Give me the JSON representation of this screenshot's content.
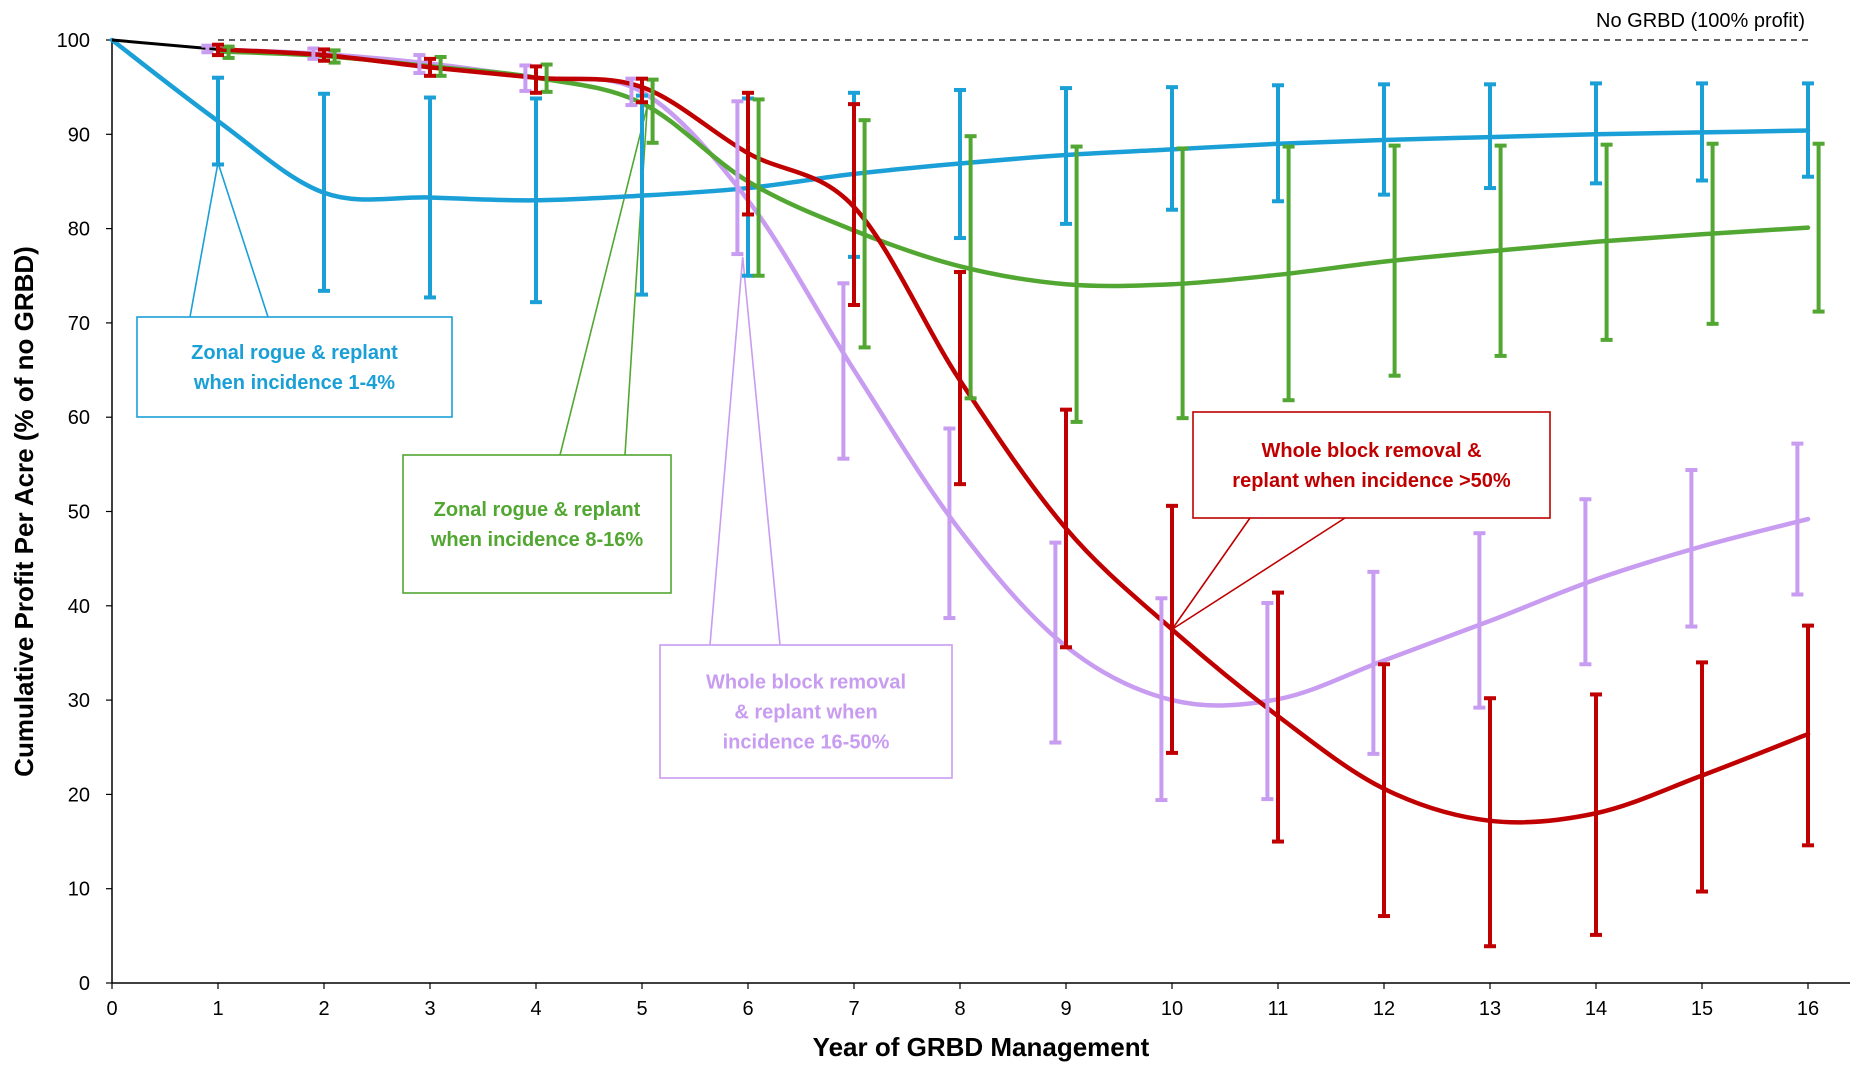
{
  "chart_data": {
    "type": "line",
    "title": "",
    "xlabel": "Year of GRBD Management",
    "ylabel": "Cumulative Profit Per Acre (% of no GRBD)",
    "xlim": [
      0,
      16.5
    ],
    "ylim": [
      0,
      100
    ],
    "x_ticks": [
      0,
      1,
      2,
      3,
      4,
      5,
      6,
      7,
      8,
      9,
      10,
      11,
      12,
      13,
      14,
      15,
      16
    ],
    "y_ticks": [
      0,
      10,
      20,
      30,
      40,
      50,
      60,
      70,
      80,
      90,
      100
    ],
    "grid": false,
    "reference_line": {
      "y": 100,
      "label": "No GRBD (100% profit)",
      "style": "dashed"
    },
    "baseline": {
      "x": [
        0,
        1
      ],
      "y": [
        100,
        99
      ],
      "color": "#000000"
    },
    "series": [
      {
        "key": "zonal_1_4",
        "color": "#1aa0d6",
        "label_lines": [
          "Zonal rogue & replant",
          "when incidence 1-4%"
        ],
        "x": [
          0,
          1,
          2,
          3,
          4,
          5,
          6,
          7,
          8,
          9,
          10,
          11,
          12,
          13,
          14,
          15,
          16
        ],
        "y": [
          100,
          91.4,
          83.8,
          83.3,
          83,
          83.5,
          84.3,
          85.8,
          86.9,
          87.8,
          88.4,
          89,
          89.4,
          89.7,
          90,
          90.2,
          90.4
        ],
        "err_low": [
          null,
          86.8,
          73.4,
          72.7,
          72.2,
          73,
          75,
          77,
          79,
          80.5,
          82,
          82.9,
          83.6,
          84.3,
          84.8,
          85.1,
          85.5
        ],
        "err_high": [
          null,
          96,
          94.3,
          93.9,
          93.8,
          94.1,
          93.8,
          94.4,
          94.7,
          94.9,
          95,
          95.2,
          95.3,
          95.3,
          95.4,
          95.4,
          95.4
        ],
        "err_dx": 0
      },
      {
        "key": "zonal_8_16",
        "color": "#52a732",
        "label_lines": [
          "Zonal rogue & replant",
          "when incidence 8-16%"
        ],
        "x": [
          1,
          2,
          3,
          4,
          5,
          6,
          7,
          8,
          9,
          10,
          11,
          12,
          13,
          14,
          15,
          16
        ],
        "y": [
          98.8,
          98.3,
          97.2,
          96,
          93.3,
          85,
          79.8,
          76,
          74.1,
          74.1,
          75.1,
          76.5,
          77.6,
          78.6,
          79.4,
          80.1
        ],
        "err_low": [
          98.1,
          97.6,
          96.2,
          94.5,
          89.1,
          75,
          67.4,
          62,
          59.5,
          59.9,
          61.8,
          64.4,
          66.5,
          68.2,
          69.9,
          71.2
        ],
        "err_high": [
          99.3,
          98.9,
          98.2,
          97.4,
          95.8,
          93.7,
          91.5,
          89.8,
          88.7,
          88.5,
          88.7,
          88.8,
          88.8,
          88.9,
          89,
          89
        ],
        "err_dx": 0.1
      },
      {
        "key": "whole_16_50",
        "color": "#c89cf0",
        "label_lines": [
          "Whole block removal",
          "& replant when",
          "incidence 16-50%"
        ],
        "x": [
          1,
          2,
          3,
          4,
          5,
          6,
          7,
          8,
          9,
          10,
          11,
          12,
          13,
          14,
          15,
          16
        ],
        "y": [
          99,
          98.5,
          97.5,
          96,
          94.5,
          83,
          65,
          48,
          35.7,
          30,
          30.1,
          34.2,
          38.4,
          42.8,
          46.3,
          49.2
        ],
        "err_low": [
          98.7,
          98,
          96.5,
          94.6,
          93.1,
          77.3,
          55.6,
          38.7,
          25.5,
          19.4,
          19.5,
          24.3,
          29.2,
          33.8,
          37.8,
          41.2
        ],
        "err_high": [
          99.4,
          99.1,
          98.4,
          97.3,
          95.9,
          93.5,
          74.2,
          58.8,
          46.7,
          40.8,
          40.3,
          43.6,
          47.7,
          51.3,
          54.4,
          57.2
        ],
        "err_dx": -0.1
      },
      {
        "key": "whole_50",
        "color": "#c00000",
        "label_lines": [
          "Whole block removal &",
          "replant when incidence >50%"
        ],
        "x": [
          1,
          2,
          3,
          4,
          5,
          6,
          7,
          8,
          9,
          10,
          11,
          12,
          13,
          14,
          15,
          16
        ],
        "y": [
          99,
          98.4,
          97.1,
          96,
          95,
          88,
          82.3,
          63.9,
          48.2,
          37.5,
          28.3,
          20.6,
          17.2,
          18,
          22,
          26.4
        ],
        "err_low": [
          98.4,
          97.8,
          96.2,
          94.4,
          93.4,
          81.5,
          71.9,
          52.9,
          35.6,
          24.4,
          15,
          7.1,
          3.9,
          5.1,
          9.7,
          14.6
        ],
        "err_high": [
          99.5,
          99,
          98,
          97.2,
          95.9,
          94.4,
          93.2,
          75.4,
          60.8,
          50.6,
          41.4,
          33.8,
          30.2,
          30.6,
          34,
          37.9
        ],
        "err_dx": 0
      }
    ],
    "annotations": [
      {
        "series": "zonal_1_4",
        "point": [
          1,
          87
        ],
        "text_lines": [
          "Zonal rogue & replant",
          "when incidence 1-4%"
        ]
      },
      {
        "series": "zonal_8_16",
        "point": [
          5.05,
          93
        ],
        "text_lines": [
          "Zonal rogue & replant",
          "when incidence 8-16%"
        ]
      },
      {
        "series": "whole_16_50",
        "point": [
          5.95,
          77
        ],
        "text_lines": [
          "Whole block removal",
          "& replant when",
          "incidence 16-50%"
        ]
      },
      {
        "series": "whole_50",
        "point": [
          10,
          37.5
        ],
        "text_lines": [
          "Whole block removal &",
          "replant when incidence >50%"
        ]
      }
    ]
  }
}
